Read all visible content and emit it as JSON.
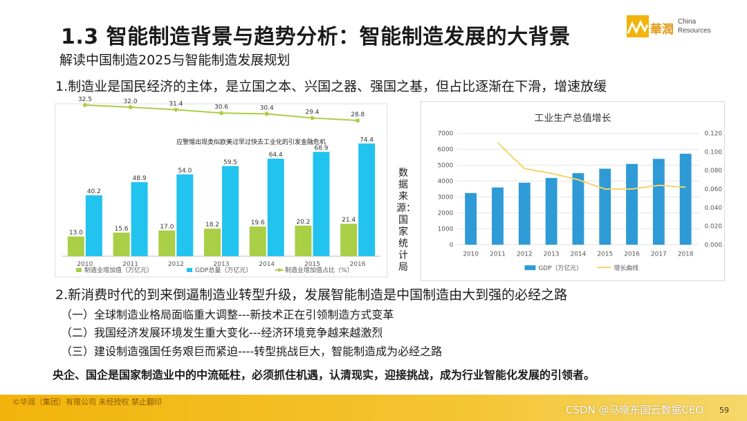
{
  "slide": {
    "title": "1.3 智能制造背景与趋势分析：智能制造发展的大背景",
    "subtitle": "解读中国制造2025与智能制造发展规划",
    "point1": "1.制造业是国民经济的主体，是立国之本、兴国之器、强国之基，但占比逐渐在下滑，增速放缓",
    "point2": "2.新消费时代的到来倒逼制造业转型升级，发展智能制造是中国制造由大到强的必经之路",
    "sub_points": [
      "（一）全球制造业格局面临重大调整---新技术正在引领制造方式变革",
      "（二）我国经济发展环境发生重大变化---经济环境竞争越来越激烈",
      "（三）建设制造强国任务艰巨而紧迫----转型挑战巨大，智能制造成为必经之路"
    ],
    "conclusion": "央企、国企是国家制造业中的中流砥柱，必须抓住机遇，认清现实，迎接挑战，成为行业智能化发展的引领者。",
    "source_note": "数据来源：国家统计局",
    "footer_text": "©华润（集团）有限公司 未经授权 禁止翻印",
    "watermark": "CSDN @马晓东国云数据CEO",
    "page_number": "59",
    "logo": {
      "cn": "華潤",
      "en_line1": "China",
      "en_line2": "Resources"
    },
    "colors": {
      "accent": "#f2b40b",
      "cyan": "#22c3ee",
      "green": "#a8cf45",
      "blue": "#2e9ad6",
      "yellow_line": "#f5d36b"
    }
  },
  "chart_data": [
    {
      "type": "bar",
      "categories": [
        "2010",
        "2011",
        "2012",
        "2013",
        "2014",
        "2015",
        "2016"
      ],
      "series": [
        {
          "name": "制造业增加值（万亿元）",
          "type": "bar",
          "color": "#a8cf45",
          "values": [
            13.0,
            15.6,
            17.0,
            18.2,
            19.6,
            20.2,
            21.4
          ]
        },
        {
          "name": "GDP总量（万亿元）",
          "type": "bar",
          "color": "#22c3ee",
          "values": [
            40.2,
            48.9,
            54.0,
            59.5,
            64.4,
            68.9,
            74.4
          ]
        },
        {
          "name": "制造业增加值占比（%）",
          "type": "line",
          "color": "#a8cf45",
          "values": [
            32.5,
            32.0,
            31.4,
            30.6,
            30.4,
            29.4,
            28.8
          ]
        }
      ],
      "annotation": "应警惕出现类似欧美过早过快去工业化的引发金融危机",
      "ylim": [
        0,
        80
      ],
      "line_ylim": [
        20,
        33
      ],
      "grid": false,
      "legend": "bottom"
    },
    {
      "type": "bar",
      "title": "工业生产总值增长",
      "categories": [
        "2010",
        "2011",
        "2012",
        "2013",
        "2014",
        "2015",
        "2016",
        "2017",
        "2018"
      ],
      "series": [
        {
          "name": "GDP（万亿元）",
          "type": "bar",
          "color": "#2e9ad6",
          "values": [
            3250,
            3600,
            3900,
            4200,
            4500,
            4780,
            5080,
            5400,
            5720
          ]
        },
        {
          "name": "增长曲线",
          "type": "line",
          "color": "#f5d36b",
          "values": [
            null,
            0.11,
            0.082,
            0.077,
            0.07,
            0.06,
            0.06,
            0.064,
            0.062
          ]
        }
      ],
      "y_ticks": [
        "0",
        "1000",
        "2000",
        "3000",
        "4000",
        "5000",
        "6000",
        "7000"
      ],
      "y2_ticks": [
        "0.000",
        "0.020",
        "0.040",
        "0.060",
        "0.080",
        "0.100",
        "0.120"
      ],
      "ylim": [
        0,
        7000
      ],
      "y2lim": [
        0,
        0.12
      ],
      "grid": true,
      "legend": "bottom"
    }
  ]
}
